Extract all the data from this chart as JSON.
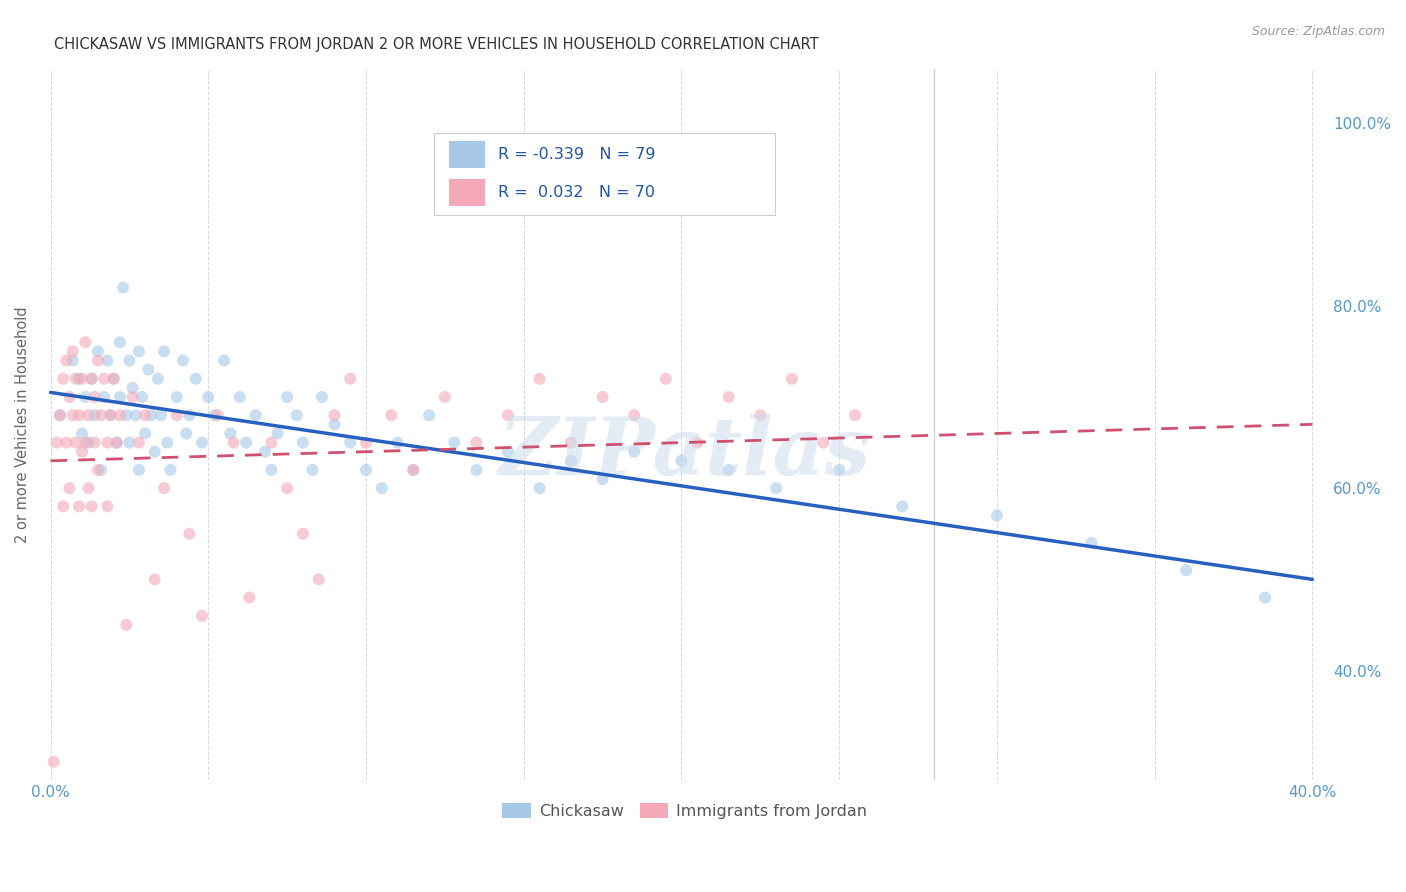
{
  "title": "CHICKASAW VS IMMIGRANTS FROM JORDAN 2 OR MORE VEHICLES IN HOUSEHOLD CORRELATION CHART",
  "source": "Source: ZipAtlas.com",
  "ylabel": "2 or more Vehicles in Household",
  "xlim": [
    -0.003,
    0.405
  ],
  "ylim": [
    0.28,
    1.06
  ],
  "x_ticks": [
    0.0,
    0.05,
    0.1,
    0.15,
    0.2,
    0.25,
    0.3,
    0.35,
    0.4
  ],
  "x_tick_labels": [
    "0.0%",
    "",
    "",
    "",
    "",
    "",
    "",
    "",
    "40.0%"
  ],
  "y_ticks_right": [
    0.4,
    0.6,
    0.8,
    1.0
  ],
  "y_tick_labels_right": [
    "40.0%",
    "60.0%",
    "80.0%",
    "100.0%"
  ],
  "blue_color": "#a8c8e8",
  "pink_color": "#f4a8b8",
  "blue_line_color": "#2860c0",
  "pink_line_color": "#d05070",
  "legend_label1": "Chickasaw",
  "legend_label2": "Immigrants from Jordan",
  "watermark": "ZIPatlas",
  "background_color": "#ffffff",
  "grid_color": "#d8d8d8",
  "axis_color": "#5599cc",
  "blue_trend_x": [
    0.0,
    0.4
  ],
  "blue_trend_y": [
    0.705,
    0.5
  ],
  "pink_trend_x": [
    0.0,
    0.4
  ],
  "pink_trend_y": [
    0.63,
    0.67
  ],
  "vline_x": 0.28,
  "chickasaw_x": [
    0.003,
    0.007,
    0.009,
    0.01,
    0.011,
    0.012,
    0.013,
    0.014,
    0.015,
    0.016,
    0.017,
    0.018,
    0.019,
    0.02,
    0.021,
    0.022,
    0.022,
    0.023,
    0.024,
    0.025,
    0.025,
    0.026,
    0.027,
    0.028,
    0.028,
    0.029,
    0.03,
    0.031,
    0.032,
    0.033,
    0.034,
    0.035,
    0.036,
    0.037,
    0.038,
    0.04,
    0.042,
    0.043,
    0.044,
    0.046,
    0.048,
    0.05,
    0.052,
    0.055,
    0.057,
    0.06,
    0.062,
    0.065,
    0.068,
    0.07,
    0.072,
    0.075,
    0.078,
    0.08,
    0.083,
    0.086,
    0.09,
    0.095,
    0.1,
    0.105,
    0.11,
    0.115,
    0.12,
    0.128,
    0.135,
    0.145,
    0.155,
    0.165,
    0.175,
    0.185,
    0.2,
    0.215,
    0.23,
    0.25,
    0.27,
    0.3,
    0.33,
    0.36,
    0.385
  ],
  "chickasaw_y": [
    0.68,
    0.74,
    0.72,
    0.66,
    0.7,
    0.65,
    0.72,
    0.68,
    0.75,
    0.62,
    0.7,
    0.74,
    0.68,
    0.72,
    0.65,
    0.76,
    0.7,
    0.82,
    0.68,
    0.74,
    0.65,
    0.71,
    0.68,
    0.75,
    0.62,
    0.7,
    0.66,
    0.73,
    0.68,
    0.64,
    0.72,
    0.68,
    0.75,
    0.65,
    0.62,
    0.7,
    0.74,
    0.66,
    0.68,
    0.72,
    0.65,
    0.7,
    0.68,
    0.74,
    0.66,
    0.7,
    0.65,
    0.68,
    0.64,
    0.62,
    0.66,
    0.7,
    0.68,
    0.65,
    0.62,
    0.7,
    0.67,
    0.65,
    0.62,
    0.6,
    0.65,
    0.62,
    0.68,
    0.65,
    0.62,
    0.64,
    0.6,
    0.63,
    0.61,
    0.64,
    0.63,
    0.62,
    0.6,
    0.62,
    0.58,
    0.57,
    0.54,
    0.51,
    0.48
  ],
  "jordan_x": [
    0.001,
    0.002,
    0.003,
    0.004,
    0.004,
    0.005,
    0.005,
    0.006,
    0.006,
    0.007,
    0.007,
    0.008,
    0.008,
    0.009,
    0.009,
    0.01,
    0.01,
    0.011,
    0.011,
    0.012,
    0.012,
    0.013,
    0.013,
    0.014,
    0.014,
    0.015,
    0.015,
    0.016,
    0.017,
    0.018,
    0.018,
    0.019,
    0.02,
    0.021,
    0.022,
    0.024,
    0.026,
    0.028,
    0.03,
    0.033,
    0.036,
    0.04,
    0.044,
    0.048,
    0.053,
    0.058,
    0.063,
    0.07,
    0.075,
    0.08,
    0.085,
    0.09,
    0.095,
    0.1,
    0.108,
    0.115,
    0.125,
    0.135,
    0.145,
    0.155,
    0.165,
    0.175,
    0.185,
    0.195,
    0.205,
    0.215,
    0.225,
    0.235,
    0.245,
    0.255
  ],
  "jordan_y": [
    0.3,
    0.65,
    0.68,
    0.72,
    0.58,
    0.65,
    0.74,
    0.7,
    0.6,
    0.68,
    0.75,
    0.65,
    0.72,
    0.58,
    0.68,
    0.64,
    0.72,
    0.65,
    0.76,
    0.6,
    0.68,
    0.72,
    0.58,
    0.65,
    0.7,
    0.74,
    0.62,
    0.68,
    0.72,
    0.65,
    0.58,
    0.68,
    0.72,
    0.65,
    0.68,
    0.45,
    0.7,
    0.65,
    0.68,
    0.5,
    0.6,
    0.68,
    0.55,
    0.46,
    0.68,
    0.65,
    0.48,
    0.65,
    0.6,
    0.55,
    0.5,
    0.68,
    0.72,
    0.65,
    0.68,
    0.62,
    0.7,
    0.65,
    0.68,
    0.72,
    0.65,
    0.7,
    0.68,
    0.72,
    0.65,
    0.7,
    0.68,
    0.72,
    0.65,
    0.68
  ]
}
